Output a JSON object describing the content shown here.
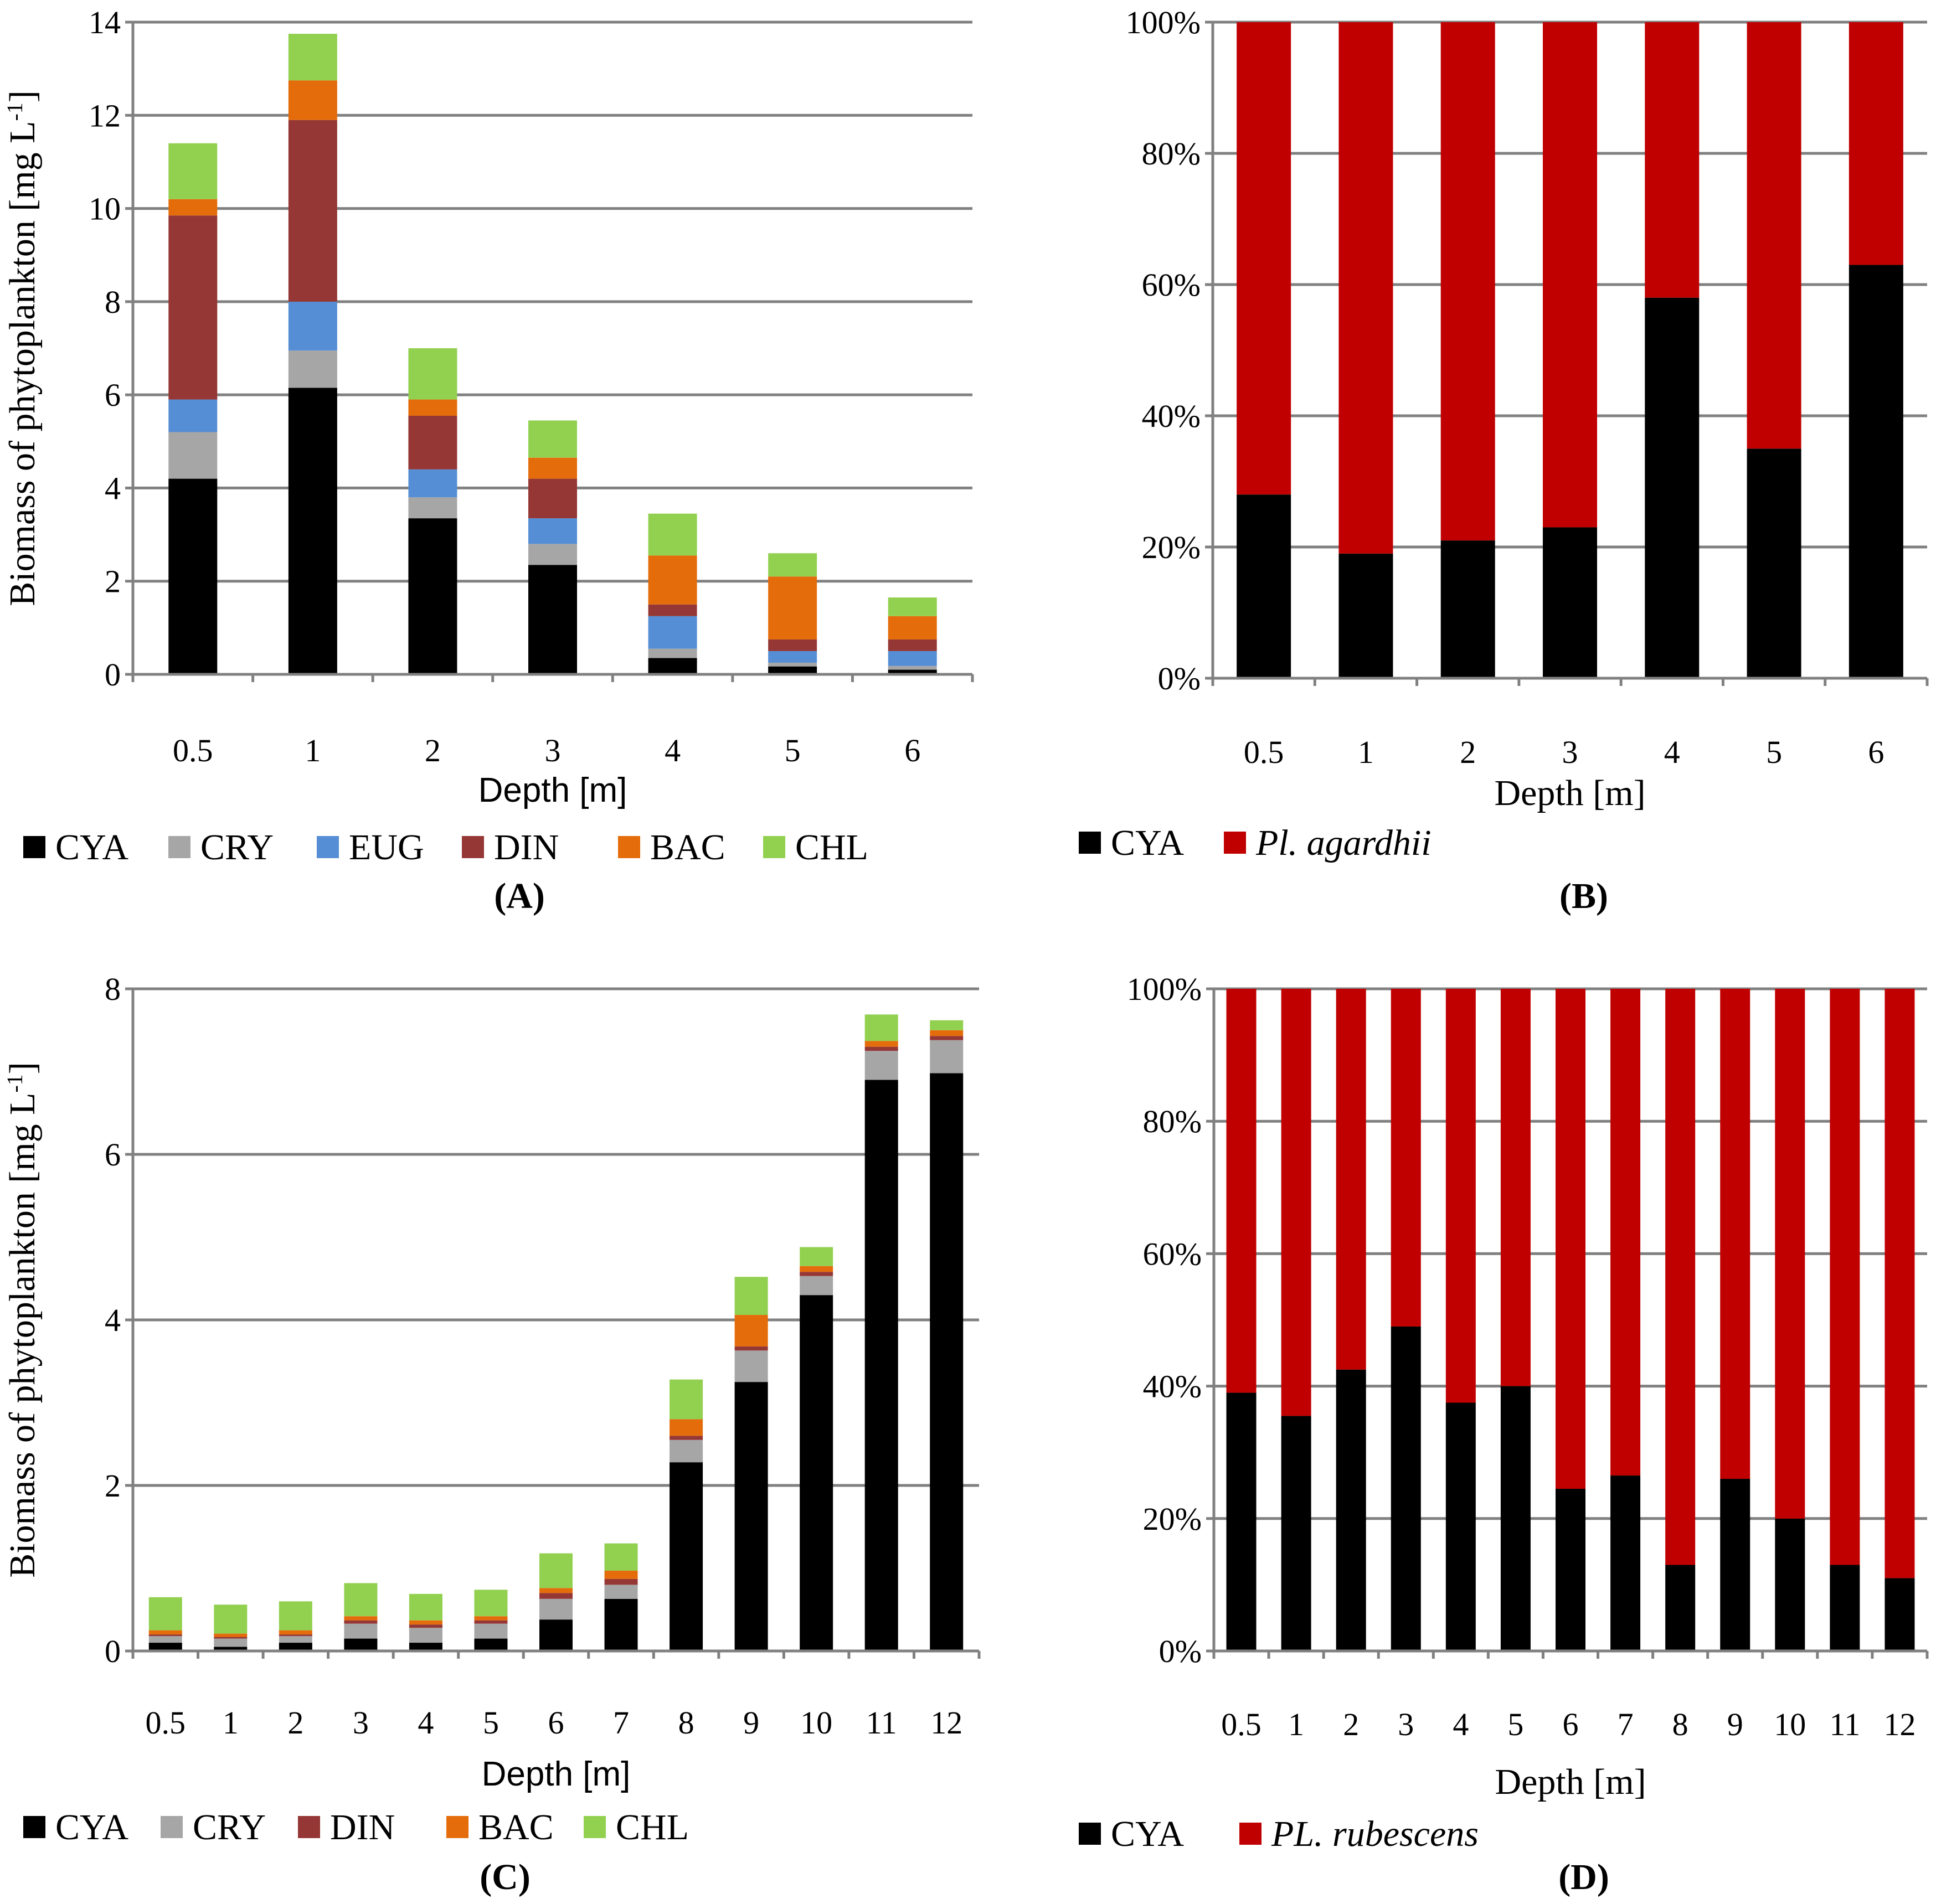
{
  "colors": {
    "CYA": "#000000",
    "CRY": "#a6a6a6",
    "EUG": "#558ed5",
    "DIN": "#953735",
    "BAC": "#e46c0a",
    "CHL": "#92d050",
    "PL": "#c00000",
    "grid": "#808080"
  },
  "chart_data": [
    {
      "id": "A",
      "type": "bar",
      "stacked": true,
      "panel_label": "(A)",
      "xlabel": "Depth [m]",
      "ylabel": "Biomass of phytoplankton [mg L",
      "ylabel_sup": "-1",
      "ylabel_end": "]",
      "ylim": [
        0,
        14
      ],
      "yticks": [
        "0",
        "2",
        "4",
        "6",
        "8",
        "10",
        "12",
        "14"
      ],
      "categories": [
        "0.5",
        "1",
        "2",
        "3",
        "4",
        "5",
        "6"
      ],
      "series": [
        {
          "name": "CYA",
          "values": [
            4.2,
            6.15,
            3.35,
            2.35,
            0.35,
            0.17,
            0.1
          ]
        },
        {
          "name": "CRY",
          "values": [
            1.0,
            0.8,
            0.45,
            0.45,
            0.2,
            0.08,
            0.08
          ]
        },
        {
          "name": "EUG",
          "values": [
            0.7,
            1.05,
            0.6,
            0.55,
            0.7,
            0.25,
            0.32
          ]
        },
        {
          "name": "DIN",
          "values": [
            3.95,
            3.9,
            1.15,
            0.85,
            0.25,
            0.25,
            0.25
          ]
        },
        {
          "name": "BAC",
          "values": [
            0.35,
            0.85,
            0.35,
            0.45,
            1.05,
            1.35,
            0.5
          ]
        },
        {
          "name": "CHL",
          "values": [
            1.2,
            1.0,
            1.1,
            0.8,
            0.9,
            0.5,
            0.4
          ]
        }
      ],
      "legend": [
        {
          "key": "CYA",
          "label": "CYA",
          "italic": false
        },
        {
          "key": "CRY",
          "label": "CRY",
          "italic": false
        },
        {
          "key": "EUG",
          "label": "EUG",
          "italic": false
        },
        {
          "key": "DIN",
          "label": "DIN",
          "italic": false
        },
        {
          "key": "BAC",
          "label": "BAC",
          "italic": false
        },
        {
          "key": "CHL",
          "label": "CHL",
          "italic": false
        }
      ]
    },
    {
      "id": "B",
      "type": "bar",
      "stacked": true,
      "percent": true,
      "panel_label": "(B)",
      "xlabel": "Depth [m]",
      "ylim": [
        0,
        100
      ],
      "yticks": [
        "0%",
        "20%",
        "40%",
        "60%",
        "80%",
        "100%"
      ],
      "categories": [
        "0.5",
        "1",
        "2",
        "3",
        "4",
        "5",
        "6"
      ],
      "series": [
        {
          "name": "CYA",
          "values": [
            28,
            19,
            21,
            23,
            58,
            35,
            63
          ]
        },
        {
          "name": "PL",
          "values": [
            72,
            81,
            79,
            77,
            42,
            65,
            37
          ]
        }
      ],
      "legend": [
        {
          "key": "CYA",
          "label": "CYA",
          "italic": false
        },
        {
          "key": "PL",
          "label": "Pl. agardhii",
          "italic": true
        }
      ]
    },
    {
      "id": "C",
      "type": "bar",
      "stacked": true,
      "panel_label": "(C)",
      "xlabel": "Depth [m]",
      "ylabel": "Biomass of phytoplankton [mg L",
      "ylabel_sup": "-1",
      "ylabel_end": "]",
      "ylim": [
        0,
        8
      ],
      "yticks": [
        "0",
        "2",
        "4",
        "6",
        "8"
      ],
      "categories": [
        "0.5",
        "1",
        "2",
        "3",
        "4",
        "5",
        "6",
        "7",
        "8",
        "9",
        "10",
        "11",
        "12"
      ],
      "series": [
        {
          "name": "CYA",
          "values": [
            0.1,
            0.05,
            0.1,
            0.15,
            0.1,
            0.15,
            0.38,
            0.63,
            2.28,
            3.25,
            4.3,
            6.9,
            6.98
          ]
        },
        {
          "name": "CRY",
          "values": [
            0.08,
            0.1,
            0.08,
            0.18,
            0.18,
            0.18,
            0.25,
            0.17,
            0.27,
            0.38,
            0.23,
            0.35,
            0.4
          ]
        },
        {
          "name": "DIN",
          "values": [
            0.02,
            0.02,
            0.02,
            0.04,
            0.04,
            0.04,
            0.07,
            0.07,
            0.05,
            0.05,
            0.05,
            0.05,
            0.05
          ]
        },
        {
          "name": "BAC",
          "values": [
            0.05,
            0.04,
            0.05,
            0.05,
            0.05,
            0.05,
            0.06,
            0.1,
            0.2,
            0.38,
            0.07,
            0.07,
            0.07
          ]
        },
        {
          "name": "CHL",
          "values": [
            0.4,
            0.35,
            0.35,
            0.4,
            0.32,
            0.32,
            0.42,
            0.33,
            0.48,
            0.46,
            0.23,
            0.32,
            0.12
          ]
        }
      ],
      "legend": [
        {
          "key": "CYA",
          "label": "CYA",
          "italic": false
        },
        {
          "key": "CRY",
          "label": "CRY",
          "italic": false
        },
        {
          "key": "DIN",
          "label": "DIN",
          "italic": false
        },
        {
          "key": "BAC",
          "label": "BAC",
          "italic": false
        },
        {
          "key": "CHL",
          "label": "CHL",
          "italic": false
        }
      ]
    },
    {
      "id": "D",
      "type": "bar",
      "stacked": true,
      "percent": true,
      "panel_label": "(D)",
      "xlabel": "Depth [m]",
      "ylim": [
        0,
        100
      ],
      "yticks": [
        "0%",
        "20%",
        "40%",
        "60%",
        "80%",
        "100%"
      ],
      "categories": [
        "0.5",
        "1",
        "2",
        "3",
        "4",
        "5",
        "6",
        "7",
        "8",
        "9",
        "10",
        "11",
        "12"
      ],
      "series": [
        {
          "name": "CYA",
          "values": [
            39,
            35.5,
            42.5,
            49,
            37.5,
            40,
            24.5,
            26.5,
            13,
            26,
            20,
            13,
            11
          ]
        },
        {
          "name": "PL",
          "values": [
            61,
            64.5,
            57.5,
            51,
            62.5,
            60,
            75.5,
            73.5,
            87,
            74,
            80,
            87,
            89
          ]
        }
      ],
      "legend": [
        {
          "key": "CYA",
          "label": "CYA",
          "italic": false
        },
        {
          "key": "PL",
          "label": "PL. rubescens",
          "italic": true
        }
      ]
    }
  ]
}
